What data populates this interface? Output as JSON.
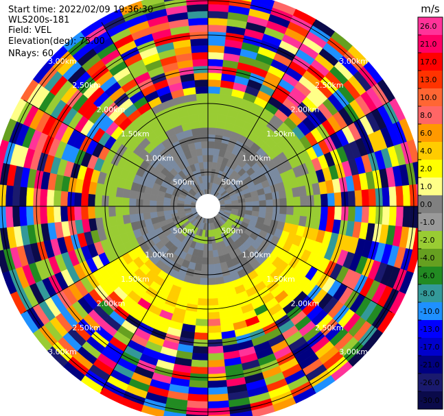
{
  "header": {
    "start_time": "Start time: 2022/02/09 19:36:30",
    "instrument": "WLS200s-181",
    "field": "Field: VEL",
    "elevation": "Elevation(deg): 75.00",
    "nrays": "NRays: 60"
  },
  "chart_data": {
    "type": "heatmap",
    "projection": "polar-ppi",
    "field": "VEL",
    "n_rays": 60,
    "range_rings_km": [
      0.5,
      1.0,
      1.5,
      2.0,
      2.5,
      3.0
    ],
    "range_ring_labels": [
      "500m",
      "1.00km",
      "1.50km",
      "2.00km",
      "2.50km",
      "3.00km"
    ],
    "range_gate_edges_km": [
      0.05,
      0.15,
      0.25,
      0.35,
      0.45,
      0.55,
      0.65,
      0.75,
      0.85,
      0.95,
      1.05,
      1.15,
      1.25,
      1.35,
      1.45,
      1.55,
      1.65,
      1.75,
      1.85,
      1.95,
      2.05,
      2.15,
      2.25,
      2.35,
      2.45,
      2.55,
      2.65,
      2.75,
      2.85,
      2.95,
      3.05,
      3.15
    ],
    "spoke_angles_deg": [
      0,
      30,
      60,
      90,
      120,
      150,
      180,
      210,
      240,
      270,
      300,
      330
    ],
    "colorbar": {
      "unit": "m/s",
      "tick_labels": [
        "26.0",
        "21.0",
        "17.0",
        "13.0",
        "10.0",
        "8.0",
        "6.0",
        "4.0",
        "2.0",
        "1.0",
        "0.0",
        "-1.0",
        "-2.0",
        "-4.0",
        "-6.0",
        "-8.0",
        "-10.0",
        "-13.0",
        "-17.0",
        "-21.0",
        "-26.0",
        "-30.0"
      ],
      "colors": [
        "#ff3399",
        "#ff0066",
        "#ff0000",
        "#ff3300",
        "#ff6633",
        "#ff6666",
        "#ff9900",
        "#ffcc00",
        "#ffff00",
        "#ffff88",
        "#808080",
        "#999999",
        "#99cc33",
        "#66a020",
        "#228b22",
        "#339999",
        "#1e90ff",
        "#0000ff",
        "#0000cc",
        "#000080",
        "#1a1a6e",
        "#0a0a4a"
      ]
    },
    "regions": {
      "inner_gray_max_km": 1.2,
      "green_ring_max_km": 1.7,
      "yellow_sector_deg": [
        100,
        240
      ],
      "near_field_green_km": [
        0.35,
        0.6
      ]
    }
  }
}
